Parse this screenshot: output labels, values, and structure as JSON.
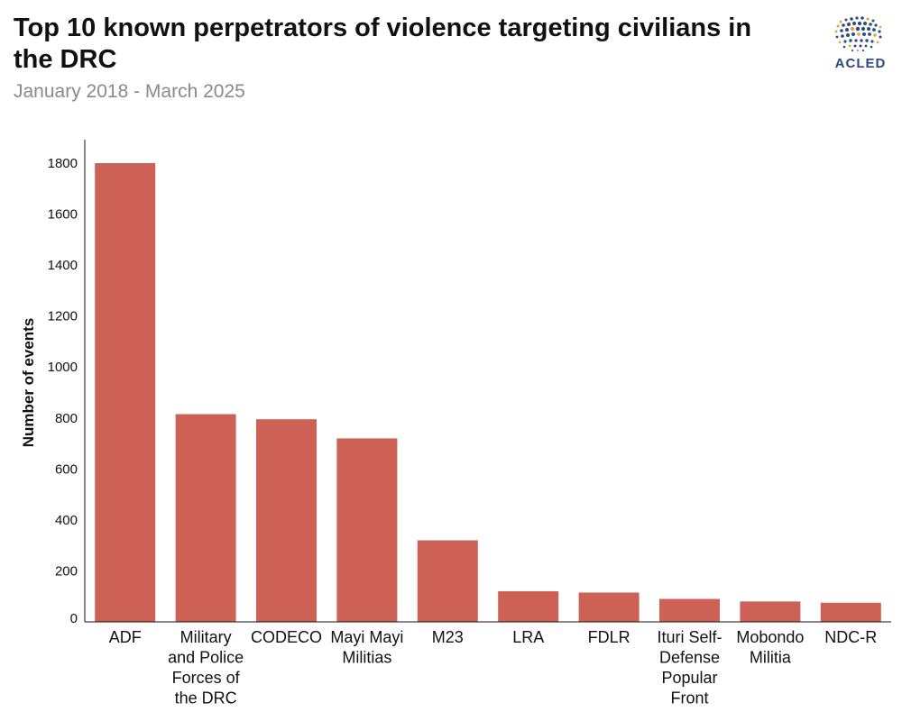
{
  "header": {
    "title": "Top 10 known perpetrators of violence targeting civilians in the DRC",
    "subtitle": "January 2018 - March 2025",
    "logo_text": "ACLED"
  },
  "colors": {
    "bar": "#cd6155",
    "logo_blue": "#2d4a8a",
    "logo_gold": "#e8a33a"
  },
  "chart_data": {
    "type": "bar",
    "title": "Top 10 known perpetrators of violence targeting civilians in the DRC",
    "subtitle": "January 2018 - March 2025",
    "xlabel": "",
    "ylabel": "Number of events",
    "ylim": [
      0,
      1900
    ],
    "yticks": [
      0,
      200,
      400,
      600,
      800,
      1000,
      1200,
      1400,
      1600,
      1800
    ],
    "grid": false,
    "categories": [
      [
        "ADF"
      ],
      [
        "Military",
        "and Police",
        "Forces of",
        "the DRC"
      ],
      [
        "CODECO"
      ],
      [
        "Mayi Mayi",
        "Militias"
      ],
      [
        "M23"
      ],
      [
        "LRA"
      ],
      [
        "FDLR"
      ],
      [
        "Ituri Self-",
        "Defense",
        "Popular",
        "Front"
      ],
      [
        "Mobondo",
        "Militia"
      ],
      [
        "NDC-R"
      ]
    ],
    "values": [
      1800,
      815,
      795,
      720,
      320,
      120,
      115,
      90,
      80,
      75
    ]
  }
}
